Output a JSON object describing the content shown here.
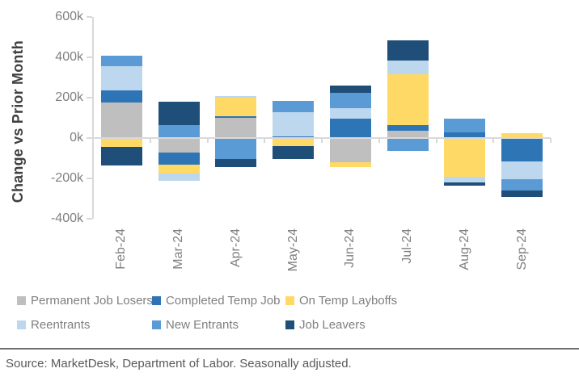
{
  "figure": {
    "ylabel": "Change vs Prior Month",
    "source_note": "Source: MarketDesk, Department of Labor. Seasonally adjusted."
  },
  "chart_data": {
    "type": "bar",
    "stacked": true,
    "title": "",
    "xlabel": "",
    "ylabel": "Change vs Prior Month",
    "unit": "thousands (k)",
    "categories": [
      "Feb-24",
      "Mar-24",
      "Apr-24",
      "May-24",
      "Jun-24",
      "Jul-24",
      "Aug-24",
      "Sep-24"
    ],
    "series": [
      {
        "name": "Permanent Job Losers",
        "color": "#bfbfbf",
        "values": [
          175,
          -70,
          100,
          0,
          -120,
          35,
          0,
          0
        ]
      },
      {
        "name": "Completed Temp Job",
        "color": "#2e75b6",
        "values": [
          60,
          -60,
          10,
          10,
          95,
          30,
          30,
          -115
        ]
      },
      {
        "name": "On Temp Layboffs",
        "color": "#ffd966",
        "values": [
          -45,
          -45,
          90,
          -40,
          -25,
          250,
          -190,
          25
        ]
      },
      {
        "name": "Reentrants",
        "color": "#bdd7ee",
        "values": [
          120,
          -35,
          10,
          120,
          55,
          70,
          -30,
          -90
        ]
      },
      {
        "name": "New Entrants",
        "color": "#5b9bd5",
        "values": [
          55,
          65,
          -105,
          55,
          75,
          -65,
          65,
          -55
        ]
      },
      {
        "name": "Job Leavers",
        "color": "#1f4e79",
        "values": [
          -90,
          115,
          -40,
          -65,
          35,
          100,
          -15,
          -30
        ]
      }
    ],
    "y_ticks": [
      600,
      400,
      200,
      0,
      -200,
      -400
    ],
    "y_tick_labels": [
      "600k",
      "400k",
      "200k",
      "0k",
      "-200k",
      "-400k"
    ],
    "ylim": [
      -400,
      600
    ],
    "grid": false,
    "legend_position": "bottom",
    "legend_rows": [
      [
        "Permanent Job Losers",
        "Completed Temp Job",
        "On Temp Layboffs"
      ],
      [
        "Reentrants",
        "New Entrants",
        "Job Leavers"
      ]
    ]
  },
  "style": {
    "background": "#ffffff",
    "axis_color": "#d9d9d9",
    "tick_label_color": "#808080",
    "ylabel_color": "#404040",
    "legend_text_color": "#7f7f7f",
    "source_text_color": "#595959",
    "divider_color": "#6e6e6e"
  }
}
